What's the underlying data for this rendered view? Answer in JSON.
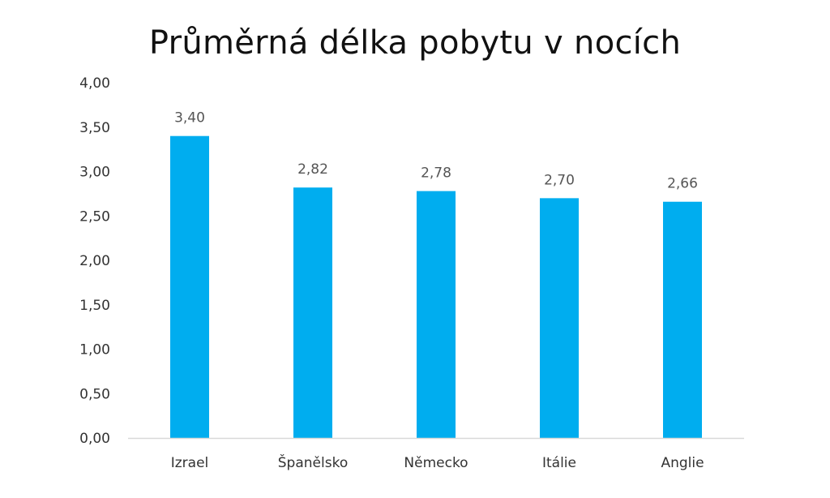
{
  "chart_data": {
    "type": "bar",
    "title": "Průměrná délka pobytu v nocích",
    "categories": [
      "Izrael",
      "Španělsko",
      "Německo",
      "Itálie",
      "Anglie"
    ],
    "values": [
      3.4,
      2.82,
      2.78,
      2.7,
      2.66
    ],
    "value_labels": [
      "3,40",
      "2,82",
      "2,78",
      "2,70",
      "2,66"
    ],
    "ylim": [
      0,
      4
    ],
    "y_ticks": [
      0,
      0.5,
      1,
      1.5,
      2,
      2.5,
      3,
      3.5,
      4
    ],
    "y_tick_labels": [
      "0,00",
      "0,50",
      "1,00",
      "1,50",
      "2,00",
      "2,50",
      "3,00",
      "3,50",
      "4,00"
    ],
    "xlabel": "",
    "ylabel": "",
    "grid": false,
    "legend": "none",
    "bar_color": "#00ADEF",
    "axis_color": "#D9D9D9"
  }
}
